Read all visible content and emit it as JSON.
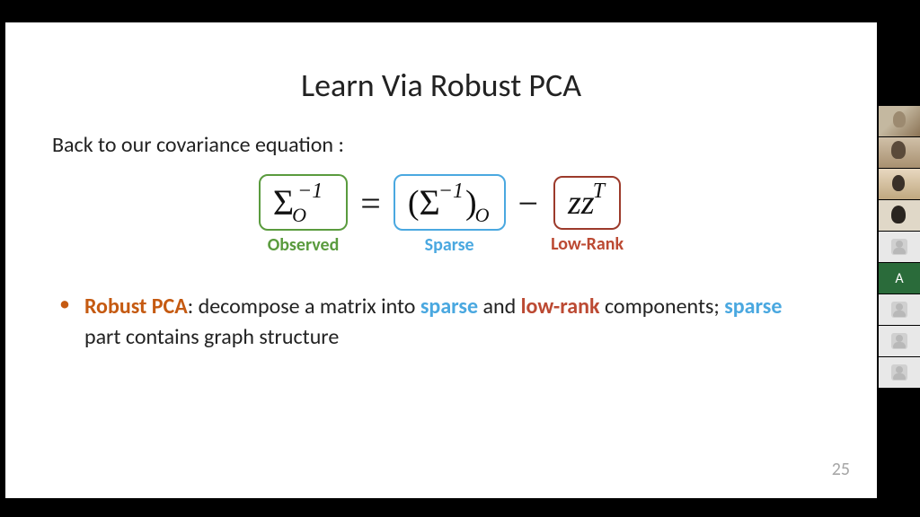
{
  "slide": {
    "title": "Learn Via Robust PCA",
    "subtitle": "Back to our covariance equation :",
    "page_number": "25",
    "colors": {
      "observed_box": "#5a9b3e",
      "sparse_box": "#4aa8e0",
      "lowrank_box": "#9c3a2b",
      "accent_orange": "#c55a11",
      "accent_brown": "#bc4a33",
      "page_num": "#a6a6a6",
      "background": "#ffffff"
    },
    "typography": {
      "title_fontsize": 36,
      "subtitle_fontsize": 24,
      "label_fontsize": 20,
      "math_fontsize": 38,
      "bullet_fontsize": 24
    },
    "equation": {
      "term1": {
        "expr_sigma": "Σ",
        "expr_sub": "O",
        "expr_sup": "−1",
        "label": "Observed",
        "color": "#5a9b3e"
      },
      "eq": "=",
      "term2": {
        "expr_open": "(",
        "expr_sigma": "Σ",
        "expr_sup": "−1",
        "expr_close": ")",
        "expr_sub": "O",
        "label": "Sparse",
        "color": "#4aa8e0"
      },
      "minus": "−",
      "term3": {
        "expr_zz": "zz",
        "expr_sup": "T",
        "label": "Low-Rank",
        "color": "#bc4a33"
      }
    },
    "bullet": {
      "dot": "•",
      "parts": {
        "p1": "Robust PCA",
        "p2": ": decompose a matrix into ",
        "p3": "sparse",
        "p4": " and ",
        "p5": "low-rank",
        "p6": " components; ",
        "p7": "sparse",
        "p8": " part contains graph structure"
      }
    }
  },
  "participants": [
    {
      "type": "video",
      "style": "video1"
    },
    {
      "type": "video",
      "style": "video2"
    },
    {
      "type": "video",
      "style": "video3"
    },
    {
      "type": "video",
      "style": "video4"
    },
    {
      "type": "blank"
    },
    {
      "type": "letter",
      "label": "A",
      "bg": "#2a6b3a"
    },
    {
      "type": "blank"
    },
    {
      "type": "blank"
    },
    {
      "type": "blank"
    }
  ]
}
